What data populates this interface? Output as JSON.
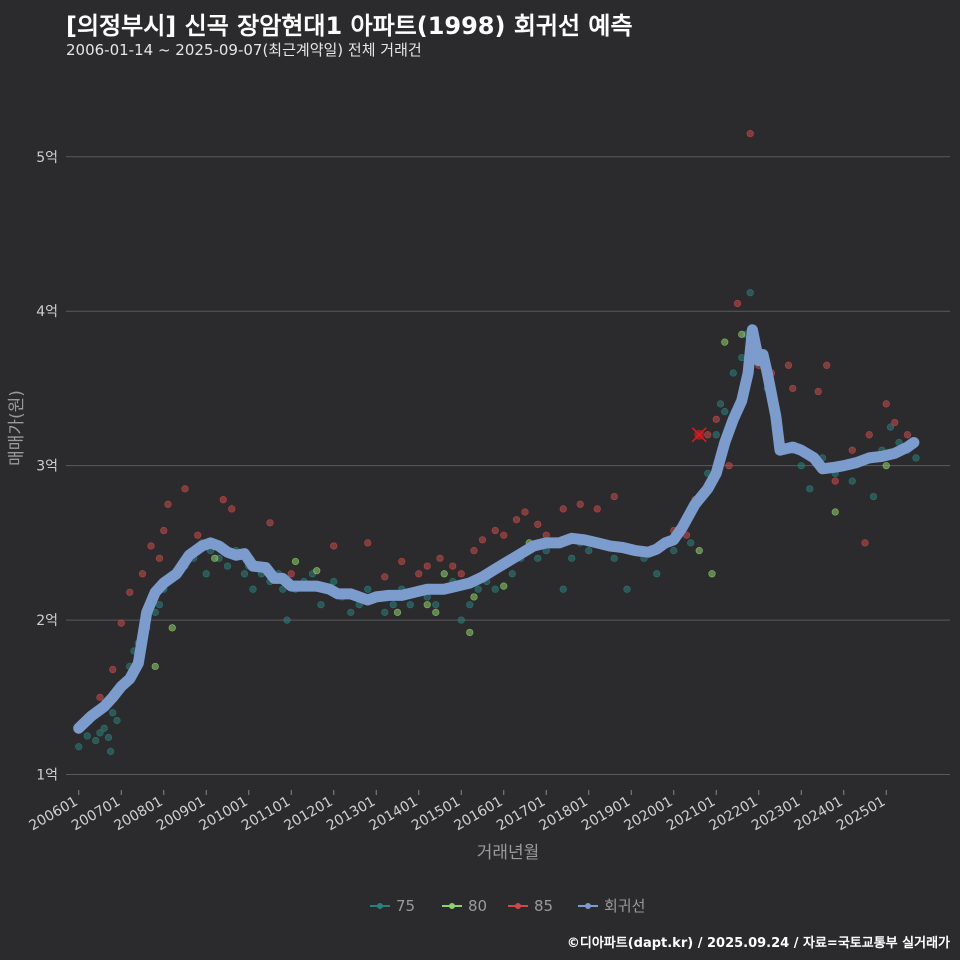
{
  "header": {
    "title": "[의정부시] 신곡 장암현대1 아파트(1998) 회귀선 예측",
    "subtitle": "2006-01-14 ~ 2025-09-07(최근계약일) 전체 거래건"
  },
  "caption": "©디아파트(dapt.kr) / 2025.09.24 / 자료=국토교통부 실거래가",
  "colors": {
    "background": "#2b2b2d",
    "grid": "#5a5a5c",
    "s75": "#2a7f7a",
    "s80": "#8fd16a",
    "s85": "#c94a4a",
    "regression": "#7b9ccc",
    "highlight": "#e41a1c"
  },
  "chart_data": {
    "type": "scatter",
    "title": "[의정부시] 신곡 장암현대1 아파트(1998) 회귀선 예측",
    "xlabel": "거래년월",
    "ylabel": "매매가(원)",
    "xlim": [
      2005.7,
      2026.5
    ],
    "ylim": [
      0.9,
      5.4
    ],
    "yticks": [
      {
        "value": 1,
        "label": "1억"
      },
      {
        "value": 2,
        "label": "2억"
      },
      {
        "value": 3,
        "label": "3억"
      },
      {
        "value": 4,
        "label": "4억"
      },
      {
        "value": 5,
        "label": "5억"
      }
    ],
    "xticks": [
      {
        "value": 2006.0,
        "label": "200601"
      },
      {
        "value": 2007.0,
        "label": "200701"
      },
      {
        "value": 2008.0,
        "label": "200801"
      },
      {
        "value": 2009.0,
        "label": "200901"
      },
      {
        "value": 2010.0,
        "label": "201001"
      },
      {
        "value": 2011.0,
        "label": "201101"
      },
      {
        "value": 2012.0,
        "label": "201201"
      },
      {
        "value": 2013.0,
        "label": "201301"
      },
      {
        "value": 2014.0,
        "label": "201401"
      },
      {
        "value": 2015.0,
        "label": "201501"
      },
      {
        "value": 2016.0,
        "label": "201601"
      },
      {
        "value": 2017.0,
        "label": "201701"
      },
      {
        "value": 2018.0,
        "label": "201801"
      },
      {
        "value": 2019.0,
        "label": "201901"
      },
      {
        "value": 2020.0,
        "label": "202001"
      },
      {
        "value": 2021.0,
        "label": "202101"
      },
      {
        "value": 2022.0,
        "label": "202201"
      },
      {
        "value": 2023.0,
        "label": "202301"
      },
      {
        "value": 2024.0,
        "label": "202401"
      },
      {
        "value": 2025.0,
        "label": "202501"
      }
    ],
    "legend": [
      {
        "key": "s75",
        "label": "75"
      },
      {
        "key": "s80",
        "label": "80"
      },
      {
        "key": "s85",
        "label": "85"
      },
      {
        "key": "regression",
        "label": "회귀선"
      }
    ],
    "series": [
      {
        "name": "75",
        "key": "s75",
        "points": [
          [
            2006.0,
            1.18
          ],
          [
            2006.2,
            1.25
          ],
          [
            2006.4,
            1.22
          ],
          [
            2006.5,
            1.27
          ],
          [
            2006.6,
            1.3
          ],
          [
            2006.7,
            1.24
          ],
          [
            2006.75,
            1.15
          ],
          [
            2006.8,
            1.4
          ],
          [
            2006.85,
            1.5
          ],
          [
            2006.9,
            1.35
          ],
          [
            2007.0,
            1.55
          ],
          [
            2007.1,
            1.6
          ],
          [
            2007.2,
            1.7
          ],
          [
            2007.3,
            1.8
          ],
          [
            2007.4,
            1.85
          ],
          [
            2007.6,
            1.95
          ],
          [
            2007.8,
            2.05
          ],
          [
            2007.9,
            2.1
          ],
          [
            2008.0,
            2.2
          ],
          [
            2008.1,
            2.25
          ],
          [
            2008.3,
            2.3
          ],
          [
            2008.5,
            2.35
          ],
          [
            2008.7,
            2.4
          ],
          [
            2008.9,
            2.5
          ],
          [
            2009.0,
            2.3
          ],
          [
            2009.1,
            2.45
          ],
          [
            2009.3,
            2.4
          ],
          [
            2009.5,
            2.35
          ],
          [
            2009.7,
            2.45
          ],
          [
            2009.9,
            2.3
          ],
          [
            2010.0,
            2.35
          ],
          [
            2010.1,
            2.2
          ],
          [
            2010.3,
            2.3
          ],
          [
            2010.5,
            2.25
          ],
          [
            2010.7,
            2.3
          ],
          [
            2010.8,
            2.2
          ],
          [
            2010.9,
            2.0
          ],
          [
            2011.1,
            2.2
          ],
          [
            2011.3,
            2.25
          ],
          [
            2011.5,
            2.3
          ],
          [
            2011.7,
            2.1
          ],
          [
            2011.9,
            2.2
          ],
          [
            2012.0,
            2.25
          ],
          [
            2012.2,
            2.15
          ],
          [
            2012.4,
            2.05
          ],
          [
            2012.6,
            2.1
          ],
          [
            2012.8,
            2.2
          ],
          [
            2013.0,
            2.15
          ],
          [
            2013.2,
            2.05
          ],
          [
            2013.4,
            2.1
          ],
          [
            2013.6,
            2.2
          ],
          [
            2013.8,
            2.1
          ],
          [
            2014.0,
            2.2
          ],
          [
            2014.2,
            2.15
          ],
          [
            2014.4,
            2.1
          ],
          [
            2014.6,
            2.2
          ],
          [
            2014.8,
            2.25
          ],
          [
            2015.0,
            2.0
          ],
          [
            2015.2,
            2.1
          ],
          [
            2015.4,
            2.2
          ],
          [
            2015.6,
            2.25
          ],
          [
            2015.8,
            2.2
          ],
          [
            2016.0,
            2.35
          ],
          [
            2016.2,
            2.3
          ],
          [
            2016.4,
            2.4
          ],
          [
            2016.6,
            2.45
          ],
          [
            2016.8,
            2.4
          ],
          [
            2017.0,
            2.45
          ],
          [
            2017.2,
            2.5
          ],
          [
            2017.4,
            2.2
          ],
          [
            2017.6,
            2.4
          ],
          [
            2017.8,
            2.5
          ],
          [
            2018.0,
            2.45
          ],
          [
            2018.3,
            2.5
          ],
          [
            2018.6,
            2.4
          ],
          [
            2018.9,
            2.2
          ],
          [
            2019.0,
            2.45
          ],
          [
            2019.3,
            2.4
          ],
          [
            2019.6,
            2.3
          ],
          [
            2019.9,
            2.5
          ],
          [
            2020.0,
            2.45
          ],
          [
            2020.2,
            2.6
          ],
          [
            2020.4,
            2.5
          ],
          [
            2020.6,
            2.8
          ],
          [
            2020.8,
            2.95
          ],
          [
            2021.0,
            3.2
          ],
          [
            2021.1,
            3.4
          ],
          [
            2021.2,
            3.35
          ],
          [
            2021.4,
            3.6
          ],
          [
            2021.6,
            3.7
          ],
          [
            2021.7,
            3.85
          ],
          [
            2021.8,
            4.12
          ],
          [
            2022.0,
            3.7
          ],
          [
            2022.2,
            3.5
          ],
          [
            2022.5,
            3.2
          ],
          [
            2022.8,
            3.1
          ],
          [
            2023.0,
            3.0
          ],
          [
            2023.2,
            2.85
          ],
          [
            2023.5,
            3.05
          ],
          [
            2023.8,
            2.95
          ],
          [
            2024.0,
            3.0
          ],
          [
            2024.2,
            2.9
          ],
          [
            2024.5,
            3.05
          ],
          [
            2024.7,
            2.8
          ],
          [
            2024.9,
            3.1
          ],
          [
            2025.1,
            3.25
          ],
          [
            2025.3,
            3.15
          ],
          [
            2025.5,
            3.1
          ],
          [
            2025.7,
            3.05
          ]
        ]
      },
      {
        "name": "80",
        "key": "s80",
        "points": [
          [
            2007.5,
            1.88
          ],
          [
            2007.8,
            1.7
          ],
          [
            2008.2,
            1.95
          ],
          [
            2009.2,
            2.4
          ],
          [
            2011.1,
            2.38
          ],
          [
            2011.6,
            2.32
          ],
          [
            2013.5,
            2.05
          ],
          [
            2014.2,
            2.1
          ],
          [
            2014.4,
            2.05
          ],
          [
            2014.6,
            2.3
          ],
          [
            2015.2,
            1.92
          ],
          [
            2015.3,
            2.15
          ],
          [
            2016.0,
            2.22
          ],
          [
            2016.6,
            2.5
          ],
          [
            2020.6,
            2.45
          ],
          [
            2020.9,
            2.3
          ],
          [
            2021.2,
            3.8
          ],
          [
            2021.6,
            3.85
          ],
          [
            2023.8,
            2.7
          ],
          [
            2025.0,
            3.0
          ]
        ]
      },
      {
        "name": "85",
        "key": "s85",
        "points": [
          [
            2006.5,
            1.5
          ],
          [
            2006.8,
            1.68
          ],
          [
            2007.0,
            1.98
          ],
          [
            2007.2,
            2.18
          ],
          [
            2007.5,
            2.3
          ],
          [
            2007.7,
            2.48
          ],
          [
            2007.9,
            2.4
          ],
          [
            2008.0,
            2.58
          ],
          [
            2008.1,
            2.75
          ],
          [
            2008.5,
            2.85
          ],
          [
            2008.8,
            2.55
          ],
          [
            2009.4,
            2.78
          ],
          [
            2009.6,
            2.72
          ],
          [
            2010.5,
            2.63
          ],
          [
            2011.0,
            2.3
          ],
          [
            2012.0,
            2.48
          ],
          [
            2012.8,
            2.5
          ],
          [
            2013.2,
            2.28
          ],
          [
            2013.6,
            2.38
          ],
          [
            2014.0,
            2.3
          ],
          [
            2014.2,
            2.35
          ],
          [
            2014.5,
            2.4
          ],
          [
            2014.8,
            2.35
          ],
          [
            2015.0,
            2.3
          ],
          [
            2015.3,
            2.45
          ],
          [
            2015.5,
            2.52
          ],
          [
            2015.8,
            2.58
          ],
          [
            2016.0,
            2.55
          ],
          [
            2016.3,
            2.65
          ],
          [
            2016.5,
            2.7
          ],
          [
            2016.8,
            2.62
          ],
          [
            2017.0,
            2.55
          ],
          [
            2017.4,
            2.72
          ],
          [
            2017.8,
            2.75
          ],
          [
            2018.2,
            2.72
          ],
          [
            2018.6,
            2.8
          ],
          [
            2020.0,
            2.58
          ],
          [
            2020.3,
            2.55
          ],
          [
            2020.5,
            2.78
          ],
          [
            2020.8,
            3.2
          ],
          [
            2021.0,
            3.3
          ],
          [
            2021.3,
            3.0
          ],
          [
            2021.5,
            4.05
          ],
          [
            2021.8,
            5.15
          ],
          [
            2022.0,
            3.65
          ],
          [
            2022.3,
            3.6
          ],
          [
            2022.7,
            3.65
          ],
          [
            2022.8,
            3.5
          ],
          [
            2023.4,
            3.48
          ],
          [
            2023.6,
            3.65
          ],
          [
            2023.8,
            2.9
          ],
          [
            2024.2,
            3.1
          ],
          [
            2024.5,
            2.5
          ],
          [
            2024.6,
            3.2
          ],
          [
            2025.0,
            3.4
          ],
          [
            2025.2,
            3.28
          ],
          [
            2025.5,
            3.2
          ]
        ]
      },
      {
        "name": "회귀선",
        "key": "regression",
        "points": [
          [
            2006.0,
            1.3
          ],
          [
            2006.3,
            1.38
          ],
          [
            2006.6,
            1.44
          ],
          [
            2006.8,
            1.5
          ],
          [
            2007.0,
            1.57
          ],
          [
            2007.2,
            1.62
          ],
          [
            2007.4,
            1.72
          ],
          [
            2007.6,
            2.05
          ],
          [
            2007.8,
            2.18
          ],
          [
            2008.0,
            2.24
          ],
          [
            2008.3,
            2.3
          ],
          [
            2008.6,
            2.42
          ],
          [
            2008.9,
            2.48
          ],
          [
            2009.1,
            2.5
          ],
          [
            2009.3,
            2.48
          ],
          [
            2009.5,
            2.44
          ],
          [
            2009.7,
            2.42
          ],
          [
            2009.9,
            2.43
          ],
          [
            2010.1,
            2.35
          ],
          [
            2010.4,
            2.34
          ],
          [
            2010.6,
            2.27
          ],
          [
            2010.8,
            2.27
          ],
          [
            2011.0,
            2.22
          ],
          [
            2011.3,
            2.22
          ],
          [
            2011.6,
            2.22
          ],
          [
            2011.9,
            2.2
          ],
          [
            2012.1,
            2.17
          ],
          [
            2012.4,
            2.17
          ],
          [
            2012.6,
            2.15
          ],
          [
            2012.8,
            2.13
          ],
          [
            2013.0,
            2.15
          ],
          [
            2013.3,
            2.16
          ],
          [
            2013.6,
            2.16
          ],
          [
            2013.9,
            2.18
          ],
          [
            2014.2,
            2.2
          ],
          [
            2014.6,
            2.2
          ],
          [
            2014.9,
            2.22
          ],
          [
            2015.2,
            2.24
          ],
          [
            2015.5,
            2.28
          ],
          [
            2015.8,
            2.33
          ],
          [
            2016.1,
            2.38
          ],
          [
            2016.4,
            2.43
          ],
          [
            2016.7,
            2.48
          ],
          [
            2017.0,
            2.5
          ],
          [
            2017.3,
            2.5
          ],
          [
            2017.6,
            2.53
          ],
          [
            2017.9,
            2.52
          ],
          [
            2018.2,
            2.5
          ],
          [
            2018.5,
            2.48
          ],
          [
            2018.8,
            2.47
          ],
          [
            2019.1,
            2.45
          ],
          [
            2019.4,
            2.44
          ],
          [
            2019.6,
            2.46
          ],
          [
            2019.8,
            2.5
          ],
          [
            2020.0,
            2.52
          ],
          [
            2020.2,
            2.6
          ],
          [
            2020.5,
            2.75
          ],
          [
            2020.8,
            2.85
          ],
          [
            2021.0,
            2.95
          ],
          [
            2021.2,
            3.15
          ],
          [
            2021.4,
            3.3
          ],
          [
            2021.6,
            3.42
          ],
          [
            2021.75,
            3.6
          ],
          [
            2021.85,
            3.88
          ],
          [
            2022.0,
            3.68
          ],
          [
            2022.1,
            3.72
          ],
          [
            2022.2,
            3.6
          ],
          [
            2022.4,
            3.32
          ],
          [
            2022.5,
            3.1
          ],
          [
            2022.8,
            3.12
          ],
          [
            2023.0,
            3.1
          ],
          [
            2023.3,
            3.05
          ],
          [
            2023.5,
            2.98
          ],
          [
            2023.8,
            2.99
          ],
          [
            2024.0,
            3.0
          ],
          [
            2024.3,
            3.02
          ],
          [
            2024.6,
            3.05
          ],
          [
            2024.9,
            3.06
          ],
          [
            2025.2,
            3.08
          ],
          [
            2025.5,
            3.12
          ],
          [
            2025.65,
            3.15
          ]
        ]
      }
    ],
    "highlight_point": [
      2020.6,
      3.2
    ]
  }
}
